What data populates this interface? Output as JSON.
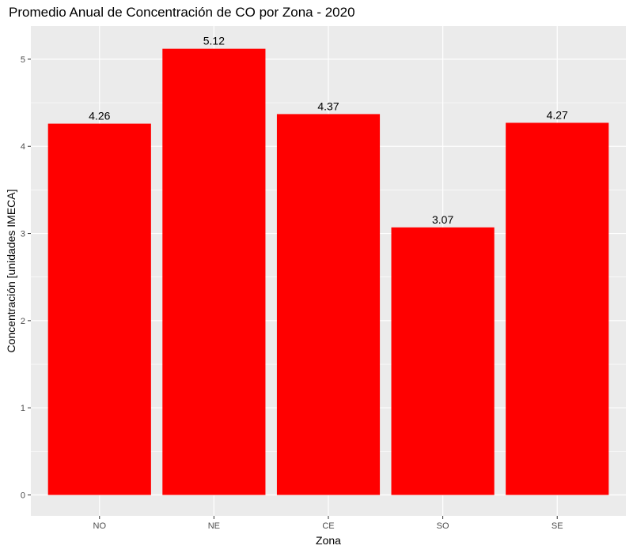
{
  "chart_data": {
    "type": "bar",
    "title": "Promedio Anual de Concentración de CO por Zona - 2020",
    "xlabel": "Zona",
    "ylabel": "Concentración [unidades IMECA]",
    "categories": [
      "NO",
      "NE",
      "CE",
      "SO",
      "SE"
    ],
    "values": [
      4.26,
      5.12,
      4.37,
      3.07,
      4.27
    ],
    "data_labels": [
      "4.26",
      "5.12",
      "4.37",
      "3.07",
      "4.27"
    ],
    "ylim": [
      -0.24,
      5.38
    ],
    "yticks": [
      0,
      1,
      2,
      3,
      4,
      5
    ],
    "ytick_labels": [
      "0",
      "1",
      "2",
      "3",
      "4",
      "5"
    ],
    "grid": true,
    "legend": "none",
    "colors": {
      "bar": "#ff0000",
      "panel_background": "#ebebeb",
      "grid": "#ffffff"
    }
  }
}
